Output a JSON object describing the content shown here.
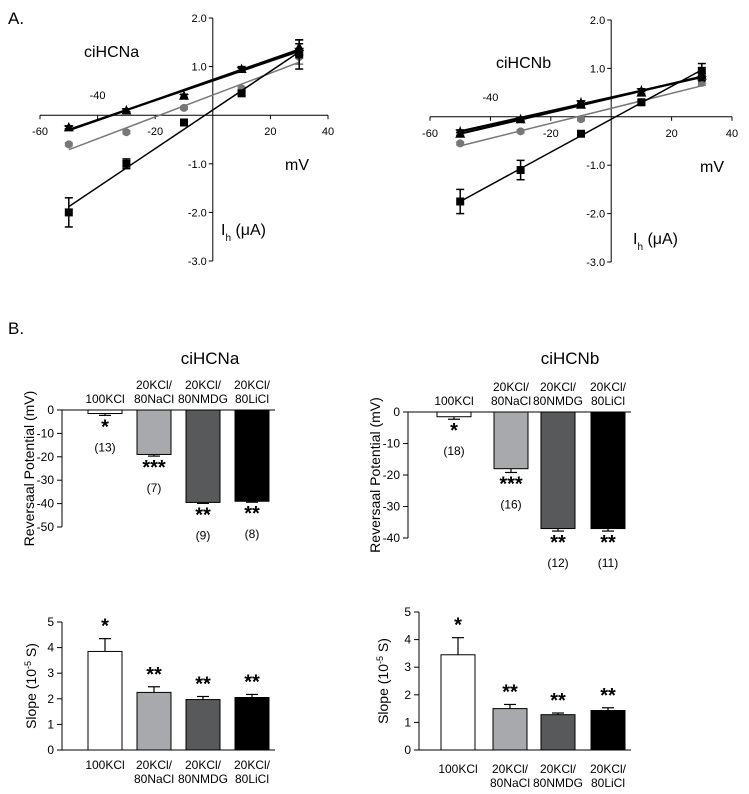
{
  "panel_labels": {
    "a": "A.",
    "b": "B."
  },
  "chart_data": [
    {
      "type": "line",
      "title": "ciHCNa",
      "xlabel": "mV",
      "ylabel": "I",
      "ylabel_sub": "h",
      "ylabel_unit": "(μA)",
      "xlim": [
        -60,
        40
      ],
      "ylim": [
        -3.0,
        2.0
      ],
      "xticks": [
        "-60",
        "-40",
        "-20",
        "20",
        "40"
      ],
      "yticks": [
        "2.0",
        "1.0",
        "-1.0",
        "-2.0",
        "-3.0"
      ],
      "series": [
        {
          "marker": "square",
          "color": "#000000",
          "x": [
            -50,
            -30,
            -10,
            10,
            30
          ],
          "y": [
            -2.0,
            -1.0,
            -0.15,
            0.45,
            1.25
          ],
          "err": [
            0.3,
            0.1,
            0.05,
            0.05,
            0.3
          ]
        },
        {
          "marker": "circle",
          "color": "#777777",
          "x": [
            -50,
            -30,
            -10,
            10,
            30
          ],
          "y": [
            -0.6,
            -0.35,
            0.15,
            0.55,
            1.2
          ],
          "err": [
            0.03,
            0.03,
            0.03,
            0.03,
            0.15
          ]
        },
        {
          "marker": "triangle",
          "color": "#000000",
          "x": [
            -50,
            -30,
            -10,
            10,
            30
          ],
          "y": [
            -0.25,
            0.1,
            0.4,
            0.95,
            1.4
          ],
          "err": [
            0.03,
            0.03,
            0.03,
            0.05,
            0.15
          ]
        },
        {
          "marker": "star",
          "color": "#000000",
          "x": [
            -50,
            -30,
            -10,
            10,
            30
          ],
          "y": [
            -0.25,
            0.1,
            0.4,
            0.95,
            1.35
          ],
          "err": [
            0.03,
            0.03,
            0.03,
            0.03,
            0.12
          ]
        }
      ]
    },
    {
      "type": "line",
      "title": "ciHCNb",
      "xlabel": "mV",
      "ylabel": "I",
      "ylabel_sub": "h",
      "ylabel_unit": "(μA)",
      "xlim": [
        -60,
        40
      ],
      "ylim": [
        -3.0,
        2.0
      ],
      "xticks": [
        "-60",
        "-40",
        "-20",
        "20",
        "40"
      ],
      "yticks": [
        "2.0",
        "1.0",
        "-1.0",
        "-2.0",
        "-3.0"
      ],
      "series": [
        {
          "marker": "square",
          "color": "#000000",
          "x": [
            -50,
            -30,
            -10,
            10,
            30
          ],
          "y": [
            -1.75,
            -1.1,
            -0.35,
            0.3,
            0.95
          ],
          "err": [
            0.25,
            0.2,
            0.05,
            0.05,
            0.15
          ]
        },
        {
          "marker": "circle",
          "color": "#777777",
          "x": [
            -50,
            -30,
            -10,
            10,
            30
          ],
          "y": [
            -0.55,
            -0.3,
            -0.05,
            0.3,
            0.7
          ],
          "err": [
            0.03,
            0.03,
            0.03,
            0.03,
            0.05
          ]
        },
        {
          "marker": "triangle",
          "color": "#000000",
          "x": [
            -50,
            -30,
            -10,
            10,
            30
          ],
          "y": [
            -0.35,
            -0.05,
            0.25,
            0.5,
            0.85
          ],
          "err": [
            0.03,
            0.03,
            0.03,
            0.03,
            0.05
          ]
        },
        {
          "marker": "star",
          "color": "#000000",
          "x": [
            -50,
            -30,
            -10,
            10,
            30
          ],
          "y": [
            -0.3,
            -0.05,
            0.3,
            0.55,
            0.8
          ],
          "err": [
            0.03,
            0.03,
            0.03,
            0.03,
            0.05
          ]
        }
      ]
    },
    {
      "type": "bar",
      "title": "ciHCNa",
      "ylabel": "Reversaal Potential (mV)",
      "ylim": [
        -50,
        0
      ],
      "yticks": [
        "0",
        "-10",
        "-20",
        "-30",
        "-40",
        "-50"
      ],
      "top_labels": true,
      "categories": [
        "100KCl",
        "20KCl/\n80NaCl",
        "20KCl/\n80NMDG",
        "20KCl/\n80LiCl"
      ],
      "values": [
        -1.5,
        -19,
        -39.5,
        -39
      ],
      "errors": [
        0.8,
        0.7,
        0.4,
        0.4
      ],
      "colors": [
        "#ffffff",
        "#a7a9ac",
        "#58595b",
        "#000000"
      ],
      "significance": [
        "*",
        "***",
        "**",
        "**"
      ],
      "n": [
        "(13)",
        "(7)",
        "(9)",
        "(8)"
      ]
    },
    {
      "type": "bar",
      "title": "ciHCNb",
      "ylabel": "Reversaal Potential (mV)",
      "ylim": [
        -40,
        0
      ],
      "yticks": [
        "0",
        "-10",
        "-20",
        "-30",
        "-40"
      ],
      "top_labels": true,
      "categories": [
        "100KCl",
        "20KCl/\n80NaCl",
        "20KCl/\n80NMDG",
        "20KCl/\n80LiCl"
      ],
      "values": [
        -1.5,
        -18,
        -37,
        -37
      ],
      "errors": [
        0.8,
        1.2,
        0.8,
        0.8
      ],
      "colors": [
        "#ffffff",
        "#a7a9ac",
        "#58595b",
        "#000000"
      ],
      "significance": [
        "*",
        "***",
        "**",
        "**"
      ],
      "n": [
        "(18)",
        "(16)",
        "(12)",
        "(11)"
      ]
    },
    {
      "type": "bar",
      "ylabel": "Slope (10",
      "ylabel_sup": "-5",
      "ylabel_unit": " S)",
      "ylim": [
        0,
        5
      ],
      "yticks": [
        "0",
        "1",
        "2",
        "3",
        "4",
        "5"
      ],
      "categories": [
        "100KCl",
        "20KCl/\n80NaCl",
        "20KCl/\n80NMDG",
        "20KCl/\n80LiCl"
      ],
      "values": [
        3.85,
        2.25,
        1.97,
        2.05
      ],
      "errors": [
        0.5,
        0.22,
        0.12,
        0.12
      ],
      "colors": [
        "#ffffff",
        "#a7a9ac",
        "#58595b",
        "#000000"
      ],
      "significance": [
        "*",
        "**",
        "**",
        "**"
      ]
    },
    {
      "type": "bar",
      "ylabel": "Slope (10",
      "ylabel_sup": "-5",
      "ylabel_unit": " S)",
      "ylim": [
        0,
        5
      ],
      "yticks": [
        "0",
        "1",
        "2",
        "3",
        "4",
        "5"
      ],
      "categories": [
        "100KCl",
        "20KCl/\n80NaCl",
        "20KCl/\n80NMDG",
        "20KCl/\n80LiCl"
      ],
      "values": [
        3.45,
        1.5,
        1.28,
        1.43
      ],
      "errors": [
        0.62,
        0.15,
        0.06,
        0.1
      ],
      "colors": [
        "#ffffff",
        "#a7a9ac",
        "#58595b",
        "#000000"
      ],
      "significance": [
        "*",
        "**",
        "**",
        "**"
      ]
    }
  ]
}
